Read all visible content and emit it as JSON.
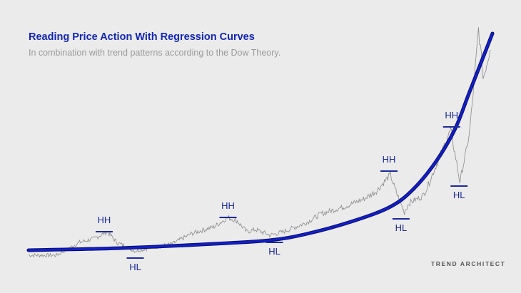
{
  "chart_data": {
    "type": "line",
    "title": "Reading Price Action With Regression Curves",
    "subtitle": "In combination with trend patterns according to the Dow Theory.",
    "xlabel": "",
    "ylabel": "",
    "xlim": [
      0,
      100
    ],
    "ylim": [
      0,
      400
    ],
    "grid": false,
    "series": [
      {
        "name": "price",
        "color": "#8a8a8a",
        "points": [
          [
            0,
            42
          ],
          [
            6,
            42
          ],
          [
            11,
            60
          ],
          [
            14,
            65
          ],
          [
            17,
            75
          ],
          [
            19,
            60
          ],
          [
            23,
            48
          ],
          [
            26,
            52
          ],
          [
            31,
            58
          ],
          [
            35,
            72
          ],
          [
            40,
            82
          ],
          [
            43,
            95
          ],
          [
            45,
            90
          ],
          [
            47,
            75
          ],
          [
            49,
            78
          ],
          [
            52,
            70
          ],
          [
            55,
            75
          ],
          [
            60,
            88
          ],
          [
            63,
            100
          ],
          [
            68,
            110
          ],
          [
            72,
            120
          ],
          [
            75,
            132
          ],
          [
            78,
            155
          ],
          [
            79,
            135
          ],
          [
            81,
            102
          ],
          [
            82,
            115
          ],
          [
            85,
            125
          ],
          [
            86,
            138
          ],
          [
            88,
            170
          ],
          [
            91,
            218
          ],
          [
            93,
            145
          ],
          [
            95,
            210
          ],
          [
            96,
            280
          ],
          [
            97,
            360
          ],
          [
            98,
            290
          ],
          [
            99.5,
            330
          ]
        ]
      },
      {
        "name": "regression curve",
        "color": "#1020c8",
        "points": [
          [
            0,
            49
          ],
          [
            20,
            52
          ],
          [
            40,
            58
          ],
          [
            52,
            63
          ],
          [
            60,
            72
          ],
          [
            70,
            90
          ],
          [
            78,
            110
          ],
          [
            83,
            135
          ],
          [
            88,
            175
          ],
          [
            92,
            220
          ],
          [
            95,
            270
          ],
          [
            100,
            353
          ]
        ]
      }
    ],
    "annotations": [
      {
        "text": "HH",
        "x": 16.3,
        "y": 91,
        "type": "high"
      },
      {
        "text": "HL",
        "x": 23,
        "y": 25,
        "type": "low"
      },
      {
        "text": "HH",
        "x": 43,
        "y": 111,
        "type": "high"
      },
      {
        "text": "HL",
        "x": 53,
        "y": 47,
        "type": "low"
      },
      {
        "text": "HH",
        "x": 77.7,
        "y": 176,
        "type": "high"
      },
      {
        "text": "HL",
        "x": 80.3,
        "y": 80,
        "type": "low"
      },
      {
        "text": "HH",
        "x": 91.2,
        "y": 238,
        "type": "high"
      },
      {
        "text": "HL",
        "x": 92.8,
        "y": 126,
        "type": "low"
      }
    ]
  },
  "brand": "TREND ARCHITECT"
}
